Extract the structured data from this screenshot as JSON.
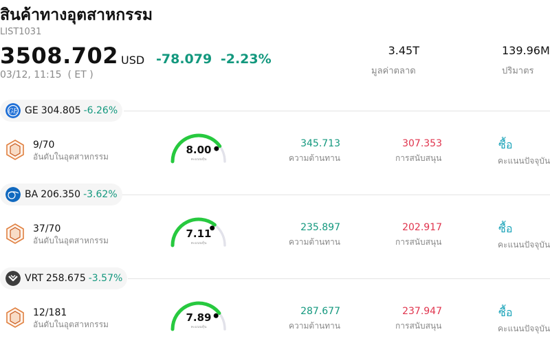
{
  "header": {
    "title": "สินค้าทางอุตสาหกรรม",
    "ticker": "LIST1031",
    "price": "3508.702",
    "currency": "USD",
    "change": "-78.079",
    "change_pct": "-2.23%",
    "datetime": "03/12, 11:15  ( ET )",
    "market_cap": {
      "value": "3.45T",
      "label": "มูลค่าตลาด"
    },
    "volume": {
      "value": "139.96M",
      "label": "ปริมาตร"
    }
  },
  "stocks": [
    {
      "symbol": "GE",
      "price": "304.805",
      "change_pct": "-6.26%",
      "logo_icon": "ge-logo-icon",
      "rank": "9/70",
      "rank_label": "อันดับในอุตสาหกรรม",
      "score": "8.00",
      "score_fraction": 0.8,
      "score_caption": "คะแนนหุ้น",
      "resistance": "345.713",
      "resistance_label": "ความต้านทาน",
      "support": "307.353",
      "support_label": "การสนับสนุน",
      "rating": "ซื้อ",
      "rating_label": "คะแนนปัจจุบัน"
    },
    {
      "symbol": "BA",
      "price": "206.350",
      "change_pct": "-3.62%",
      "logo_icon": "boeing-logo-icon",
      "rank": "37/70",
      "rank_label": "อันดับในอุตสาหกรรม",
      "score": "7.11",
      "score_fraction": 0.711,
      "score_caption": "คะแนนหุ้น",
      "resistance": "235.897",
      "resistance_label": "ความต้านทาน",
      "support": "202.917",
      "support_label": "การสนับสนุน",
      "rating": "ซื้อ",
      "rating_label": "คะแนนปัจจุบัน"
    },
    {
      "symbol": "VRT",
      "price": "258.675",
      "change_pct": "-3.57%",
      "logo_icon": "vertiv-logo-icon",
      "rank": "12/181",
      "rank_label": "อันดับในอุตสาหกรรม",
      "score": "7.89",
      "score_fraction": 0.789,
      "score_caption": "คะแนนหุ้น",
      "resistance": "287.677",
      "resistance_label": "ความต้านทาน",
      "support": "237.947",
      "support_label": "การสนับสนุน",
      "rating": "ซื้อ",
      "rating_label": "คะแนนปัจจุบัน"
    }
  ],
  "colors": {
    "positive_text": "#13987e",
    "negative_text": "#e0344d",
    "buy": "#17a2b8",
    "gauge_fill": "#27c93f",
    "gauge_track": "#e2e2ea"
  }
}
